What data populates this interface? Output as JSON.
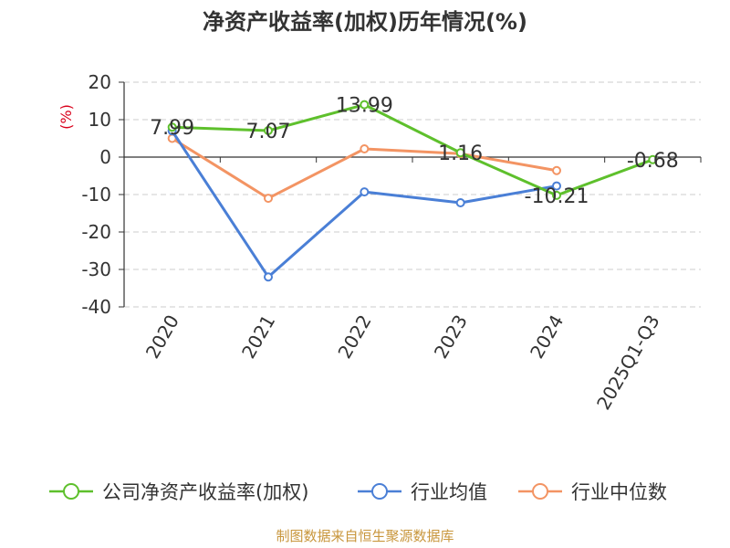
{
  "chart_data": {
    "type": "line",
    "title": "净资产收益率(加权)历年情况(%)",
    "ylabel": "(%)",
    "xlabel": "",
    "categories": [
      "2020",
      "2021",
      "2022",
      "2023",
      "2024",
      "2025Q1-Q3"
    ],
    "ylim": [
      -40,
      20
    ],
    "yticks": [
      20,
      10,
      0,
      -10,
      -20,
      -30,
      -40
    ],
    "grid": true,
    "legend_position": "bottom",
    "series": [
      {
        "name": "公司净资产收益率(加权)",
        "color": "#5ec02c",
        "values": [
          7.99,
          7.07,
          13.99,
          1.16,
          -10.21,
          -0.68
        ],
        "labels": [
          "7.99",
          "7.07",
          "13.99",
          "1.16",
          "-10.21",
          "-0.68"
        ]
      },
      {
        "name": "行业均值",
        "color": "#4a7fd6",
        "values": [
          7.0,
          -32.0,
          -9.3,
          -12.2,
          -7.7,
          null
        ]
      },
      {
        "name": "行业中位数",
        "color": "#f39463",
        "values": [
          5.0,
          -11.0,
          2.2,
          0.9,
          -3.6,
          null
        ]
      }
    ],
    "source": "制图数据来自恒生聚源数据库"
  }
}
